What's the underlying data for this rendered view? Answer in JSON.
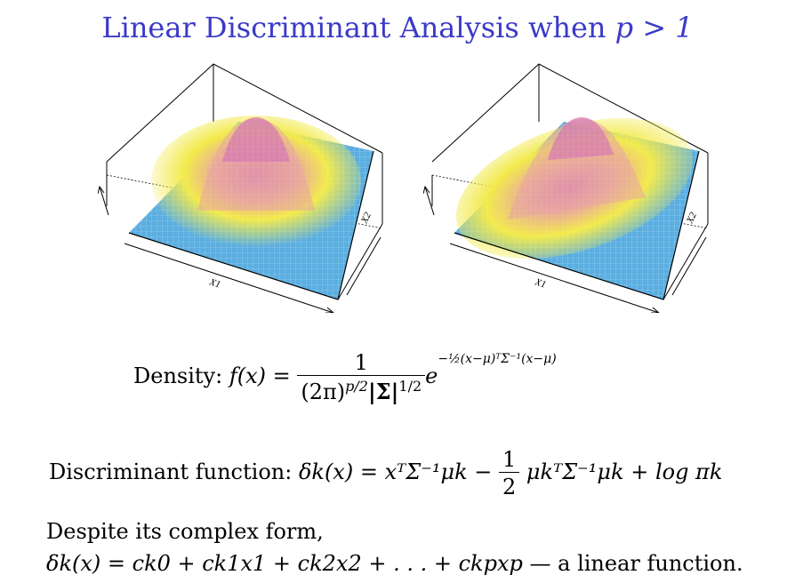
{
  "slide": {
    "title_text": "Linear Discriminant Analysis when ",
    "title_math": "p > 1"
  },
  "plots": [
    {
      "x1_label": "X1",
      "x2_label": "X2"
    },
    {
      "x1_label": "X1",
      "x2_label": "X2"
    }
  ],
  "density": {
    "label": "Density:",
    "lhs": "f(x) =",
    "numerator": "1",
    "denominator_a": "(2π)",
    "denominator_a_exp": "p/2",
    "denominator_b": "|Σ|",
    "denominator_b_exp": "1/2",
    "exp_base": "e",
    "exponent": "−½(x−μ)ᵀΣ⁻¹(x−μ)"
  },
  "discriminant": {
    "label": "Discriminant function:",
    "lhs": "δk(x) =",
    "term1": "xᵀΣ⁻¹μk",
    "minus": "−",
    "half_num": "1",
    "half_den": "2",
    "term2": "μkᵀΣ⁻¹μk",
    "plus": "+",
    "term3": "log πk"
  },
  "conclusion": {
    "line1": "Despite its complex form,",
    "math": "δk(x) = ck0 + ck1x1 + ck2x2 + . . . + ckpxp",
    "tail": "— a linear function."
  },
  "colors": {
    "title": "#3a3ac8",
    "surface_low": "#5aaee0",
    "surface_mid": "#f0ec4a",
    "surface_high": "#d87ab0"
  }
}
